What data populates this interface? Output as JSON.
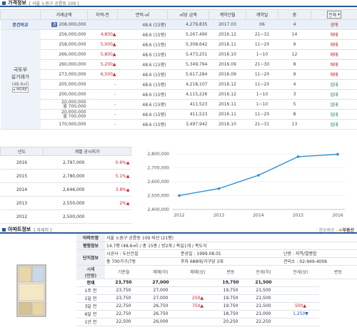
{
  "price_section": {
    "title": "가격정보",
    "subtitle": "[ 서울 노원구 공릉동 109 ]",
    "headers": [
      "거래금액",
      "차액-만",
      "면적-㎡",
      "㎡당 금액",
      "계약년월",
      "계약일",
      "층"
    ],
    "type_select": "전체",
    "base_label": "본건비교",
    "base_tag": "경",
    "base_row": [
      "208,000,000",
      "",
      "48.6 (15평)",
      "4,279,835",
      "2017.03",
      "06",
      "4",
      "경매"
    ],
    "group_label": "국토부\n실거래가",
    "group_sub": "(48.6㎡)",
    "group_more": "▸ MORE",
    "rows": [
      [
        "256,000,000",
        "4,800▲",
        "48.6 (15평)",
        "5,267,490",
        "2016.12",
        "21~31",
        "14",
        "매매"
      ],
      [
        "258,000,000",
        "5,000▲",
        "48.6 (15평)",
        "5,308,642",
        "2016.11",
        "11~20",
        "9",
        "매매"
      ],
      [
        "266,000,000",
        "5,800▲",
        "48.6 (15평)",
        "5,473,251",
        "2016.10",
        "1~10",
        "12",
        "매매"
      ],
      [
        "260,000,000",
        "5,200▲",
        "48.6 (15평)",
        "5,349,794",
        "2016.09",
        "21~30",
        "8",
        "매매"
      ],
      [
        "273,000,000",
        "6,500▲",
        "48.6 (15평)",
        "5,617,284",
        "2016.09",
        "11~20",
        "9",
        "매매"
      ],
      [
        "205,000,000",
        "-",
        "48.6 (15평)",
        "4,218,107",
        "2016.12",
        "11~20",
        "4",
        "임대"
      ],
      [
        "200,000,000",
        "-",
        "48.6 (15평)",
        "4,115,226",
        "2016.12",
        "1~10",
        "3",
        "임대"
      ],
      [
        "20,000,000\n월 700,000",
        "-",
        "48.6 (15평)",
        "411,523",
        "2016.11",
        "1~10",
        "5",
        "임대"
      ],
      [
        "20,000,000\n월 700,000",
        "-",
        "48.6 (15평)",
        "411,523",
        "2016.11",
        "11~20",
        "8",
        "임대"
      ],
      [
        "170,000,000",
        "-",
        "48.6 (15평)",
        "3,497,942",
        "2016.10",
        "21~31",
        "13",
        "임대"
      ]
    ]
  },
  "gonsi": {
    "headers": [
      "년도",
      "개별 공시지가"
    ],
    "rows": [
      {
        "year": "2016",
        "price": "2,797,000",
        "pct": "0.6%▲"
      },
      {
        "year": "2015",
        "price": "2,780,000",
        "pct": "5.1%▲"
      },
      {
        "year": "2014",
        "price": "2,646,000",
        "pct": "3.8%▲"
      },
      {
        "year": "2013",
        "price": "2,550,000",
        "pct": "2%▲"
      },
      {
        "year": "2012",
        "price": "2,500,000",
        "pct": ""
      }
    ]
  },
  "chart_data": {
    "type": "line",
    "x": [
      "2012",
      "2013",
      "2014",
      "2015",
      "2016"
    ],
    "values": [
      2500000,
      2550000,
      2646000,
      2780000,
      2797000
    ],
    "ylim": [
      2400000,
      2800000
    ],
    "yticks": [
      "2,800,000",
      "2,700,000",
      "2,600,000",
      "2,500,000",
      "2,400,000"
    ],
    "line_color": "#2a8fd6"
  },
  "apt": {
    "title": "아파트정보",
    "detail_link": "[ 자세히 ]",
    "credit": "· 정보제공 - ",
    "credit_brand": "부동산",
    "name_label": "아파트명",
    "name_value": "서울 노원구 공릉동 109 비선 (21평)",
    "area_label": "평형정보",
    "area_value": "14.7평 (48.6㎡) / 총 15층 / 방2개 / 욕실1개 / 복도식",
    "complex_label": "단지정보",
    "builder": "시공사 : 두산건설",
    "completed": "준공일 : 1999.08.01",
    "heating": "난방 : 지역/열병합",
    "units": "총 700가구/7동",
    "parking": "주차 688대/가구당 1대",
    "office": "관리소 : 02-949-4006",
    "price_label": "시세\n(만원)",
    "col_heads": [
      "기준월",
      "매매(하)",
      "매매(상)",
      "변동",
      "전세(하)",
      "전세(상)",
      "변동"
    ],
    "rows": [
      [
        "현재",
        "23,750",
        "27,000",
        "",
        "19,750",
        "21,500",
        ""
      ],
      [
        "1주 전",
        "23,750",
        "27,000",
        "",
        "19,750",
        "21,500",
        ""
      ],
      [
        "1달 전",
        "23,750",
        "27,000",
        "250▲",
        "19,750",
        "21,500",
        ""
      ],
      [
        "3달 전",
        "22,750",
        "26,750",
        "750▲",
        "19,750",
        "21,500",
        "500▲"
      ],
      [
        "6달 전",
        "22,750",
        "26,750",
        "",
        "18,750",
        "21,000",
        "1,250▼"
      ],
      [
        "1년 전",
        "22,500",
        "26,000",
        "",
        "20,250",
        "22,250",
        ""
      ]
    ]
  }
}
